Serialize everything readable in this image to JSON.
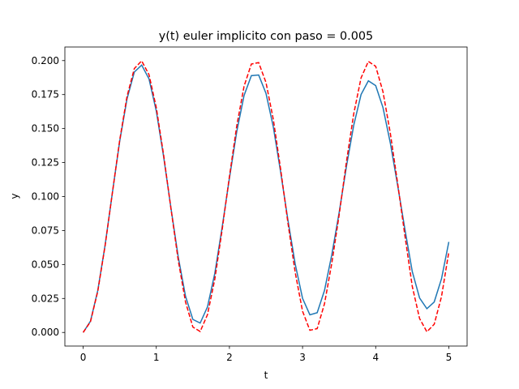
{
  "chart_data": {
    "type": "line",
    "title": "y(t) euler implicito con paso = 0.005",
    "xlabel": "t",
    "ylabel": "y",
    "x": [
      0,
      0.1,
      0.2,
      0.3,
      0.4,
      0.5,
      0.6,
      0.7,
      0.8,
      0.9,
      1.0,
      1.1,
      1.2,
      1.3,
      1.4,
      1.5,
      1.6,
      1.7,
      1.8,
      1.9,
      2.0,
      2.1,
      2.2,
      2.3,
      2.4,
      2.5,
      2.6,
      2.7,
      2.8,
      2.9,
      3.0,
      3.1,
      3.2,
      3.3,
      3.4,
      3.5,
      3.6,
      3.7,
      3.8,
      3.9,
      4.0,
      4.1,
      4.2,
      4.3,
      4.4,
      4.5,
      4.6,
      4.7,
      4.8,
      4.9,
      5.0
    ],
    "series": [
      {
        "color": "#1f77b4",
        "linestyle": "solid",
        "values": [
          0,
          0.0083,
          0.0309,
          0.0642,
          0.1029,
          0.1408,
          0.1719,
          0.1916,
          0.1967,
          0.1866,
          0.1629,
          0.1294,
          0.0917,
          0.0556,
          0.0266,
          0.0096,
          0.0069,
          0.0188,
          0.0434,
          0.0772,
          0.1135,
          0.1477,
          0.1743,
          0.1889,
          0.1894,
          0.1759,
          0.1512,
          0.1181,
          0.0827,
          0.0502,
          0.0251,
          0.013,
          0.0145,
          0.0309,
          0.0572,
          0.0881,
          0.1221,
          0.1525,
          0.175,
          0.1851,
          0.1816,
          0.1654,
          0.1394,
          0.1083,
          0.0758,
          0.0449,
          0.0254,
          0.0175,
          0.0224,
          0.0395,
          0.0666
        ]
      },
      {
        "color": "#ff0000",
        "linestyle": "dashed",
        "values": [
          0,
          0.0079,
          0.0303,
          0.0638,
          0.1029,
          0.1416,
          0.1737,
          0.1942,
          0.1998,
          0.1897,
          0.1654,
          0.1307,
          0.0913,
          0.0532,
          0.0224,
          0.004,
          0.0007,
          0.0131,
          0.0392,
          0.0754,
          0.1146,
          0.1519,
          0.1811,
          0.1975,
          0.1985,
          0.1839,
          0.1568,
          0.1202,
          0.0807,
          0.044,
          0.0156,
          0.0016,
          0.0028,
          0.0211,
          0.051,
          0.0863,
          0.1255,
          0.1609,
          0.1873,
          0.1994,
          0.1958,
          0.177,
          0.1466,
          0.1098,
          0.0711,
          0.034,
          0.0103,
          0.0005,
          0.006,
          0.0264,
          0.0592
        ]
      }
    ],
    "xlim": [
      -0.25,
      5.25
    ],
    "xticks": [
      0,
      1,
      2,
      3,
      4,
      5
    ],
    "ylim": [
      -0.01,
      0.21
    ],
    "yticks": [
      {
        "value": 0,
        "label": "0.000"
      },
      {
        "value": 0.025,
        "label": "0.025"
      },
      {
        "value": 0.05,
        "label": "0.050"
      },
      {
        "value": 0.075,
        "label": "0.075"
      },
      {
        "value": 0.1,
        "label": "0.100"
      },
      {
        "value": 0.125,
        "label": "0.125"
      },
      {
        "value": 0.15,
        "label": "0.150"
      },
      {
        "value": 0.175,
        "label": "0.175"
      },
      {
        "value": 0.2,
        "label": "0.200"
      }
    ],
    "grid": false
  }
}
